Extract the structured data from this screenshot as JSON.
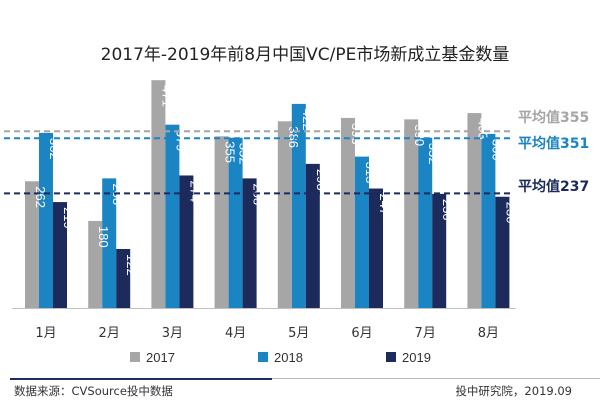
{
  "title": "2017年-2019年前8月中国VC/PE市场新成立基金数量",
  "footer": {
    "source": "数据来源：CVSource投中数据",
    "credit": "投中研究院，2019.09"
  },
  "chart_data": {
    "type": "bar",
    "title": "2017年-2019年前8月中国VC/PE市场新成立基金数量",
    "categories": [
      "1月",
      "2月",
      "3月",
      "4月",
      "5月",
      "6月",
      "7月",
      "8月"
    ],
    "series": [
      {
        "name": "2017",
        "color": "#a6a6a6",
        "values": [
          262,
          180,
          471,
          355,
          386,
          393,
          390,
          403
        ]
      },
      {
        "name": "2018",
        "color": "#1b85c4",
        "values": [
          362,
          268,
          379,
          352,
          422,
          313,
          352,
          360
        ]
      },
      {
        "name": "2019",
        "color": "#1c2a5c",
        "values": [
          219,
          122,
          274,
          268,
          298,
          247,
          236,
          230
        ]
      }
    ],
    "averages": [
      {
        "label": "平均值355",
        "value": 355,
        "color": "#a6a6a6"
      },
      {
        "label": "平均值351",
        "value": 351,
        "color": "#1b85c4"
      },
      {
        "label": "平均值237",
        "value": 237,
        "color": "#1c2a5c"
      }
    ],
    "ylim": [
      0,
      490
    ],
    "legend_position": "bottom",
    "grid": false
  }
}
